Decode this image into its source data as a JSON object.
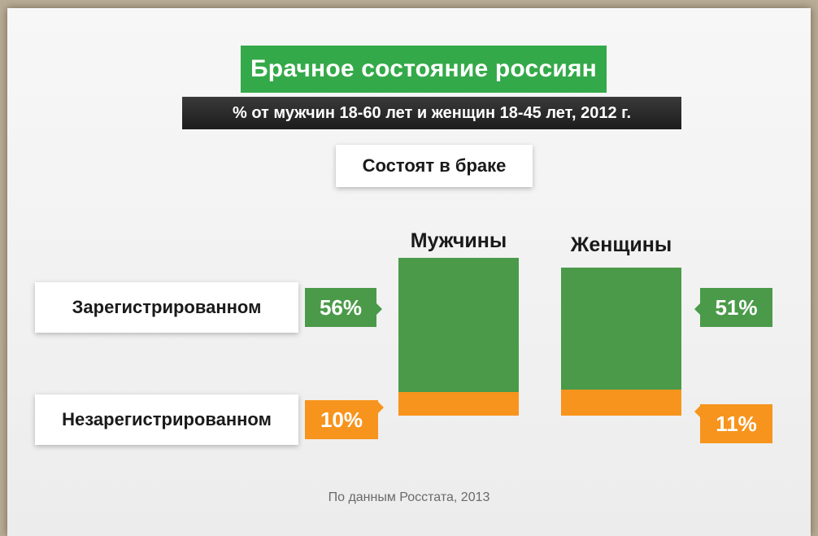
{
  "title": "Брачное состояние россиян",
  "subtitle": "% от мужчин 18-60 лет и женщин 18-45 лет, 2012 г.",
  "section": "Состоят в браке",
  "source": "По данным Росстата, 2013",
  "colors": {
    "registered": "#4b9a4a",
    "unregistered": "#f7941d",
    "title_bg": "#34a949"
  },
  "chart_data": {
    "type": "bar",
    "stacked": true,
    "categories": [
      "Мужчины",
      "Женщины"
    ],
    "series": [
      {
        "name": "Зарегистрированном",
        "values": [
          56,
          51
        ],
        "labels": [
          "56%",
          "51%"
        ]
      },
      {
        "name": "Незарегистрированном",
        "values": [
          10,
          11
        ],
        "labels": [
          "10%",
          "11%"
        ]
      }
    ]
  }
}
